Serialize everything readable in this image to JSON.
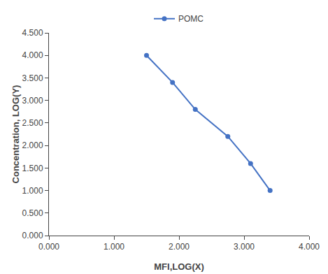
{
  "chart_data": {
    "type": "line",
    "x": [
      1.5,
      1.9,
      2.25,
      2.75,
      3.1,
      3.4
    ],
    "series": [
      {
        "name": "POMC",
        "color": "#4472C4",
        "marker": "circle",
        "values": [
          4.0,
          3.4,
          2.8,
          2.2,
          1.6,
          1.0
        ]
      }
    ],
    "xlabel": "MFI,LOG(X)",
    "ylabel": "Concentration, LOG(Y)",
    "xlim": [
      0.0,
      4.0
    ],
    "ylim": [
      0.0,
      4.5
    ],
    "xticks": [
      {
        "value": 0.0,
        "label": "0.000"
      },
      {
        "value": 1.0,
        "label": "1.000"
      },
      {
        "value": 2.0,
        "label": "2.000"
      },
      {
        "value": 3.0,
        "label": "3.000"
      },
      {
        "value": 4.0,
        "label": "4.000"
      }
    ],
    "yticks": [
      {
        "value": 0.0,
        "label": "0.000"
      },
      {
        "value": 0.5,
        "label": "0.500"
      },
      {
        "value": 1.0,
        "label": "1.000"
      },
      {
        "value": 1.5,
        "label": "1.500"
      },
      {
        "value": 2.0,
        "label": "2.000"
      },
      {
        "value": 2.5,
        "label": "2.500"
      },
      {
        "value": 3.0,
        "label": "3.000"
      },
      {
        "value": 3.5,
        "label": "3.500"
      },
      {
        "value": 4.0,
        "label": "4.000"
      },
      {
        "value": 4.5,
        "label": "4.500"
      }
    ],
    "grid": false,
    "legend": "top"
  }
}
